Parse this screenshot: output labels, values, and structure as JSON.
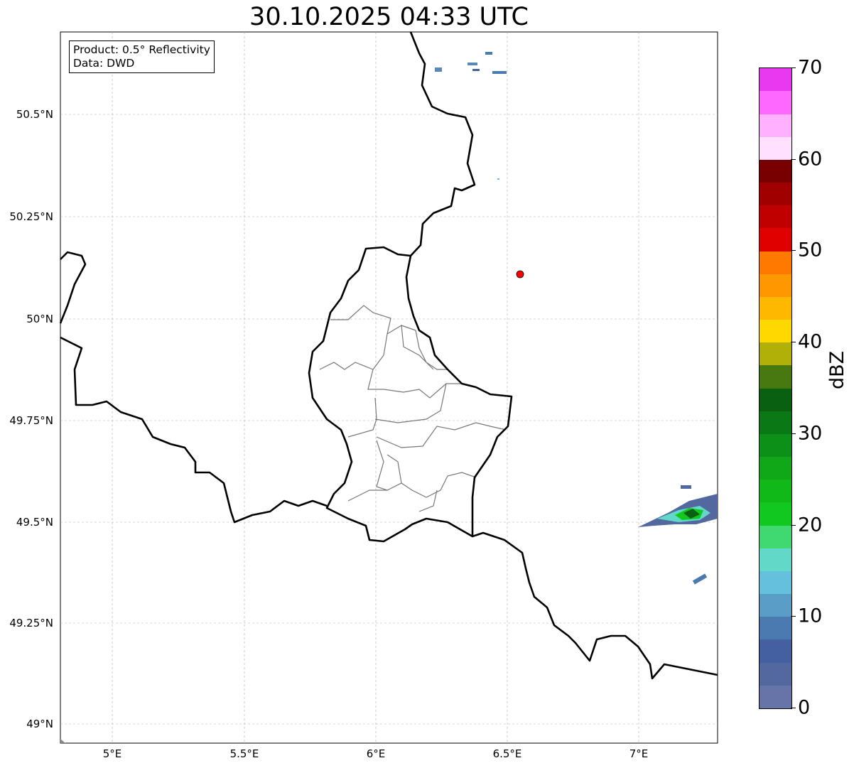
{
  "title": "30.10.2025 04:33 UTC",
  "info_box": {
    "line1": "Product: 0.5° Reflectivity",
    "line2": "Data: DWD"
  },
  "axes": {
    "lat_ticks": [
      "50.5°N",
      "50.25°N",
      "50°N",
      "49.75°N",
      "49.5°N",
      "49.25°N",
      "49°N"
    ],
    "lon_ticks": [
      "5°E",
      "5.5°E",
      "6°E",
      "6.5°E",
      "7°E"
    ]
  },
  "colorbar": {
    "label": "dBZ",
    "tick_labels": [
      "0",
      "10",
      "20",
      "30",
      "40",
      "50",
      "60",
      "70"
    ],
    "range": [
      0,
      70
    ],
    "colors": [
      "#6674a8",
      "#5468a0",
      "#4560a0",
      "#4a7ab0",
      "#5a9dc6",
      "#64c0dc",
      "#62d8c8",
      "#40d870",
      "#10c820",
      "#10b818",
      "#10a818",
      "#0c9018",
      "#0a7814",
      "#086010",
      "#487810",
      "#b0b008",
      "#ffd800",
      "#ffb800",
      "#ff9800",
      "#ff7800",
      "#e00000",
      "#c00000",
      "#a00000",
      "#780000",
      "#ffe0ff",
      "#ffb0ff",
      "#ff68ff",
      "#e838f0"
    ]
  }
}
